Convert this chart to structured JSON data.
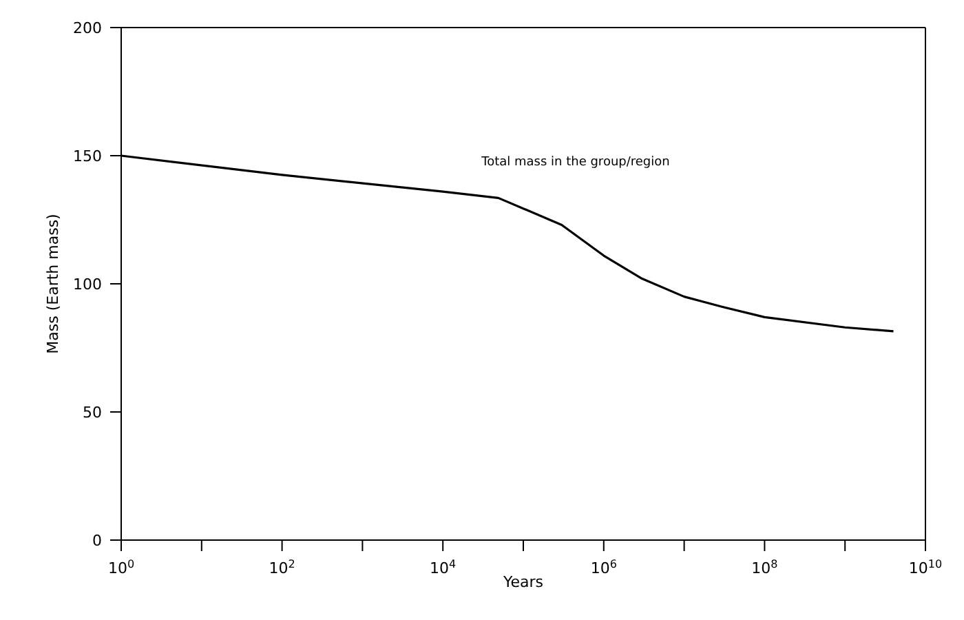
{
  "chart_data": {
    "type": "line",
    "xlabel": "Years",
    "ylabel": "Mass (Earth mass)",
    "annotations": [
      "Total mass in the group/region"
    ],
    "x": [
      1,
      100,
      10000,
      49000,
      300000,
      1000000,
      3000000,
      10000000,
      30000000,
      100000000,
      1000000000,
      4000000000
    ],
    "series": [
      {
        "color": "#000000",
        "values": [
          150,
          142.5,
          136,
          133.5,
          123,
          111,
          102,
          95,
          91,
          87,
          83,
          81.5
        ]
      }
    ],
    "log": "x",
    "xlim": [
      1,
      10000000000
    ],
    "xticks": [
      {
        "value": 1,
        "label": "10$^{0}$"
      },
      {
        "value": 10,
        "label": null
      },
      {
        "value": 100,
        "label": "10$^{2}$"
      },
      {
        "value": 1000,
        "label": null
      },
      {
        "value": 10000,
        "label": "10$^{4}$"
      },
      {
        "value": 100000,
        "label": null
      },
      {
        "value": 1000000,
        "label": "10$^{6}$"
      },
      {
        "value": 10000000,
        "label": null
      },
      {
        "value": 100000000,
        "label": "10$^{8}$"
      },
      {
        "value": 1000000000,
        "label": null
      },
      {
        "value": 10000000000,
        "label": "10$^{10}$"
      }
    ],
    "ylim": [
      0,
      200
    ],
    "yticks": [
      0,
      50,
      100,
      150,
      200
    ],
    "marker": "none",
    "line_style": "solid"
  }
}
